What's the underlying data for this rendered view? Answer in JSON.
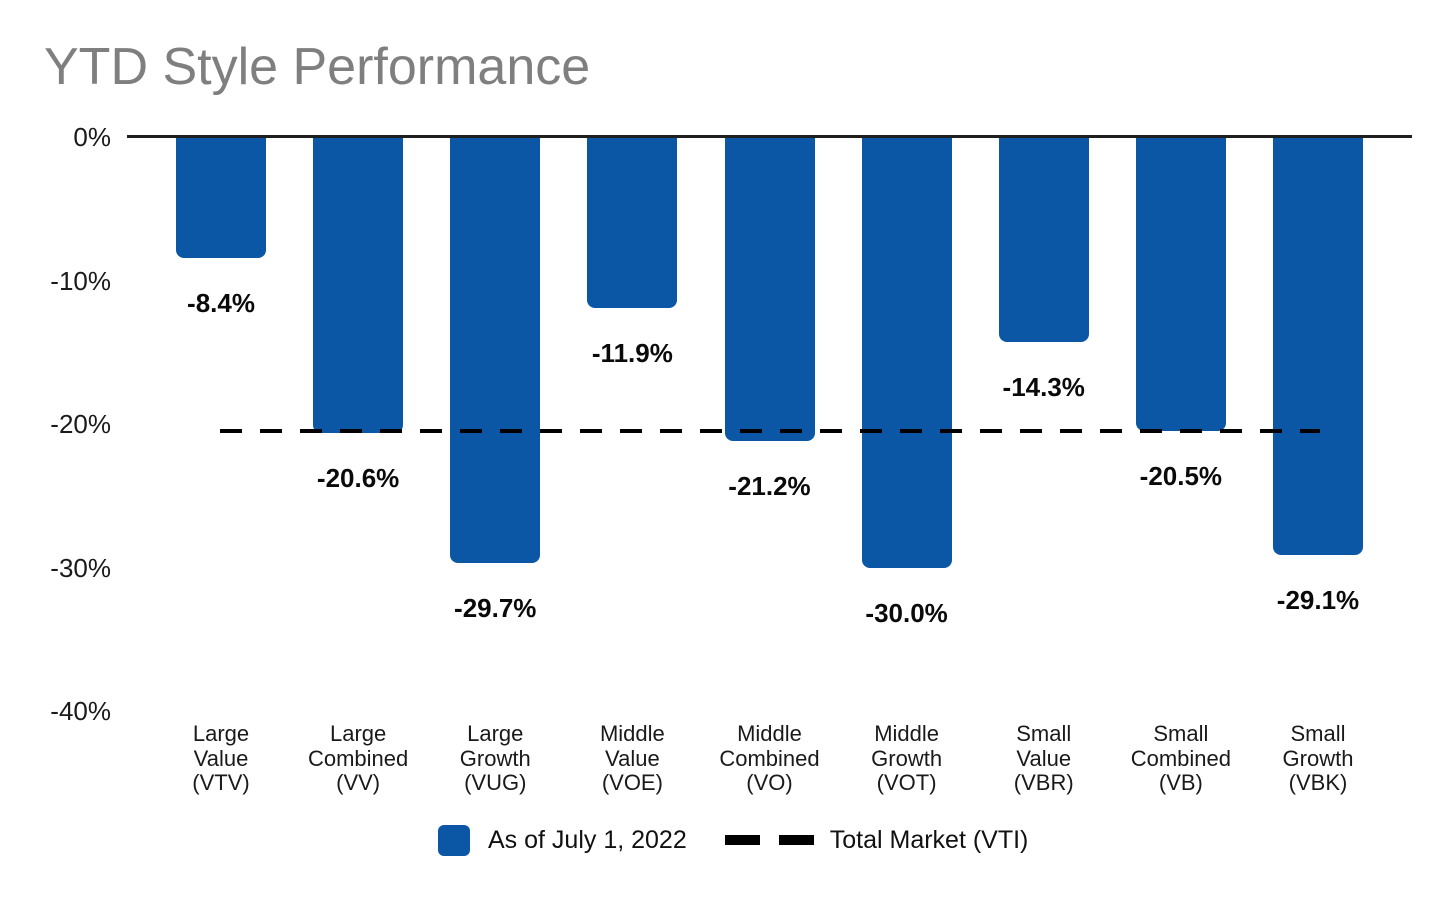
{
  "colors": {
    "bar": "#0b57a6",
    "axis": "#1f1f1f",
    "reference_line": "#000000",
    "title_text": "#7f7f7f",
    "label_text": "#1a1a1a"
  },
  "chart_data": {
    "type": "bar",
    "title": "YTD Style Performance",
    "xlabel": "",
    "ylabel": "",
    "grid": false,
    "categories": [
      [
        "Large",
        "Value",
        "(VTV)"
      ],
      [
        "Large",
        "Combined",
        "(VV)"
      ],
      [
        "Large",
        "Growth",
        "(VUG)"
      ],
      [
        "Middle",
        "Value",
        "(VOE)"
      ],
      [
        "Middle",
        "Combined",
        "(VO)"
      ],
      [
        "Middle",
        "Growth",
        "(VOT)"
      ],
      [
        "Small",
        "Value",
        "(VBR)"
      ],
      [
        "Small",
        "Combined",
        "(VB)"
      ],
      [
        "Small",
        "Growth",
        "(VBK)"
      ]
    ],
    "tickers": [
      "VTV",
      "VV",
      "VUG",
      "VOE",
      "VO",
      "VOT",
      "VBR",
      "VB",
      "VBK"
    ],
    "series": [
      {
        "name": "As of July 1, 2022",
        "values": [
          -8.4,
          -20.6,
          -29.7,
          -11.9,
          -21.2,
          -30.0,
          -14.3,
          -20.5,
          -29.1
        ]
      }
    ],
    "data_labels": [
      "-8.4%",
      "-20.6%",
      "-29.7%",
      "-11.9%",
      "-21.2%",
      "-30.0%",
      "-14.3%",
      "-20.5%",
      "-29.1%"
    ],
    "y_axis": {
      "range": [
        -40,
        0
      ],
      "ticks": [
        {
          "label": "0%",
          "value": 0
        },
        {
          "label": "-10%",
          "value": -10
        },
        {
          "label": "-20%",
          "value": -20
        },
        {
          "label": "-30%",
          "value": -30
        },
        {
          "label": "-40%",
          "value": -40
        }
      ]
    },
    "reference_line": {
      "name": "Total Market (VTI)",
      "value": -20.5,
      "style": "dashed",
      "color": "#000000"
    },
    "legend": {
      "position": "bottom",
      "items": [
        {
          "label": "As of July 1, 2022",
          "swatch": "bar-square",
          "color": "#0b57a6"
        },
        {
          "label": "Total Market (VTI)",
          "swatch": "dashed-line",
          "color": "#000000"
        }
      ]
    }
  }
}
